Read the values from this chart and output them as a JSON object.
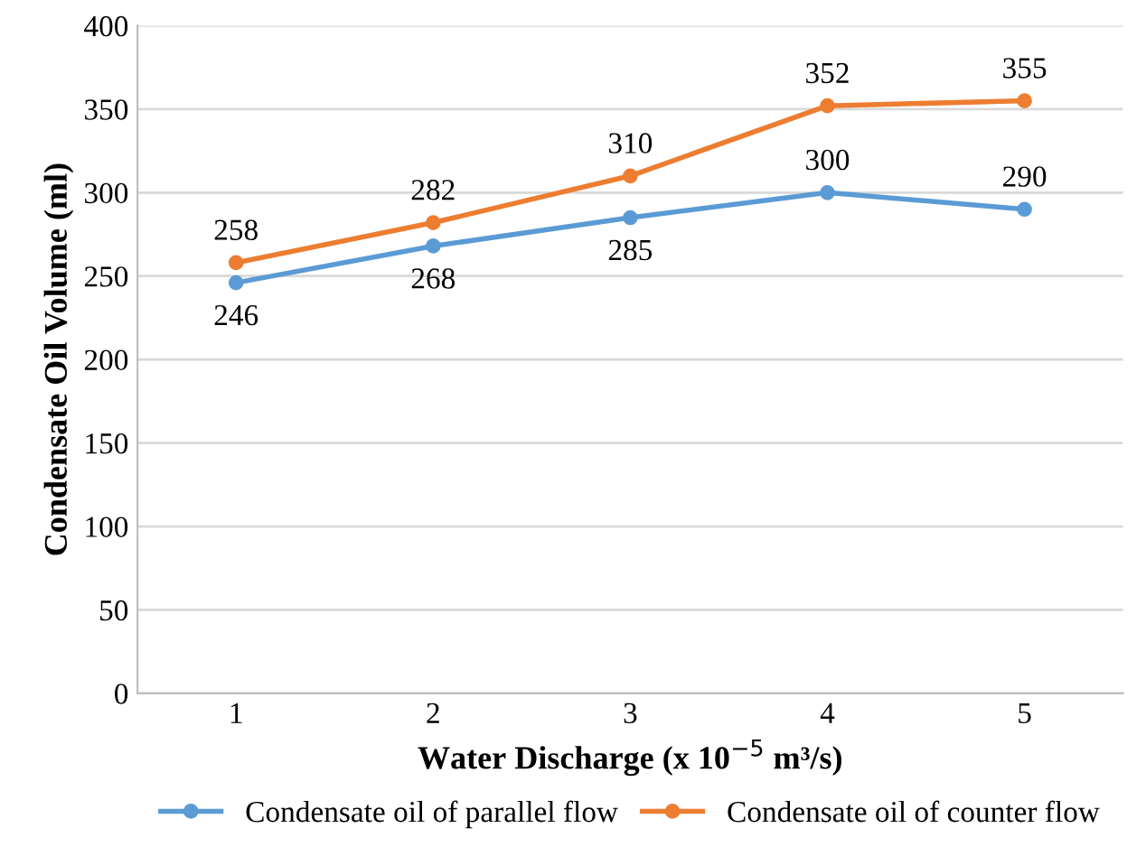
{
  "chart_data": {
    "type": "line",
    "xlabel": "Water Discharge (x 10$^{−5}$ m³/s)",
    "ylabel": "Condensate Oil Volume (ml)",
    "categories": [
      "1",
      "2",
      "3",
      "4",
      "5"
    ],
    "series": [
      {
        "name": "Condensate oil of parallel flow",
        "color": "#5b9bd5",
        "values": [
          246,
          268,
          285,
          300,
          290
        ]
      },
      {
        "name": "Condensate oil of counter flow",
        "color": "#ed7d31",
        "values": [
          258,
          282,
          310,
          352,
          355
        ]
      }
    ],
    "ylim": [
      0,
      400
    ],
    "yticks": [
      0,
      50,
      100,
      150,
      200,
      250,
      300,
      350,
      400
    ],
    "grid": "y",
    "legend": "bottom",
    "marker": "circle",
    "line_style": "solid",
    "data_labels": true
  }
}
